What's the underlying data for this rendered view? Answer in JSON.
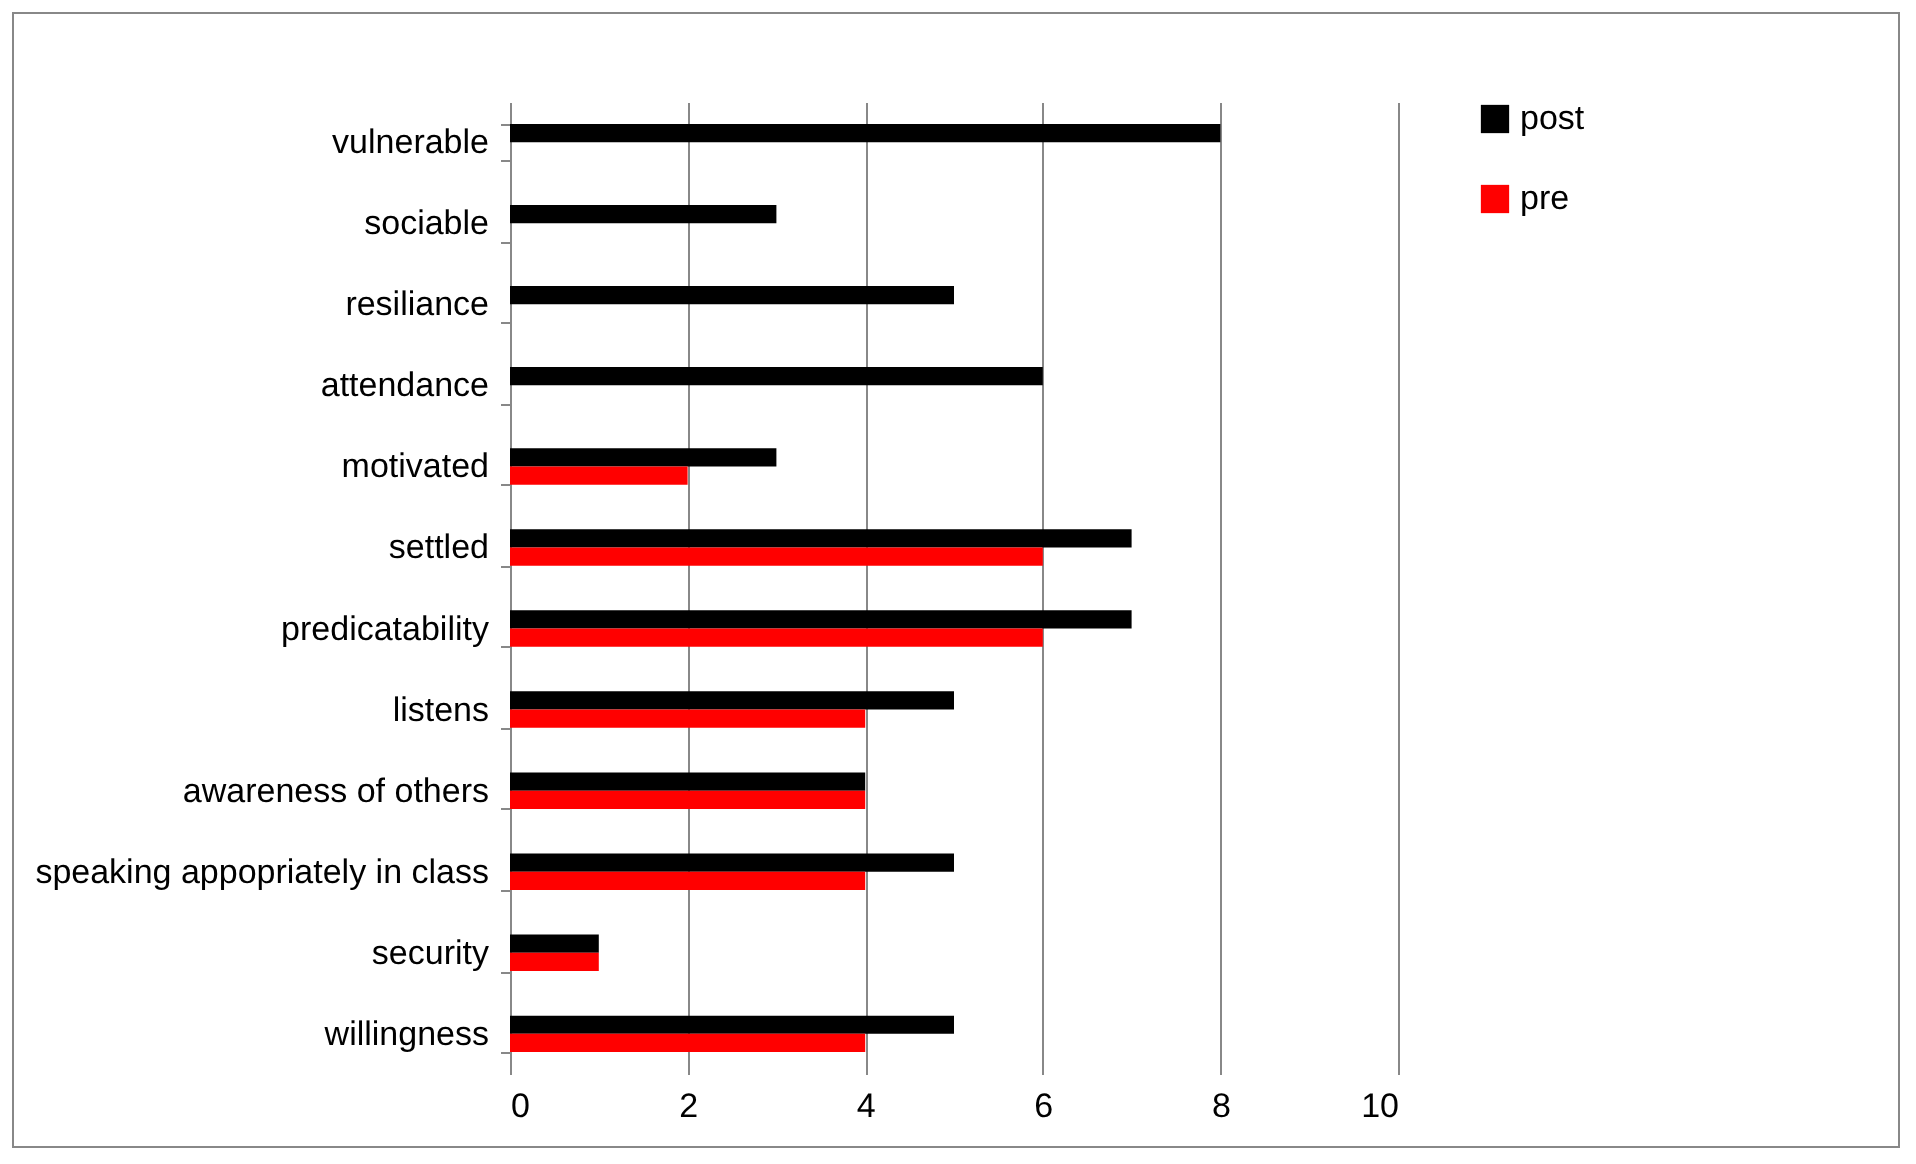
{
  "chart_data": {
    "type": "bar",
    "orientation": "horizontal",
    "categories": [
      "vulnerable",
      "sociable",
      "resiliance",
      "attendance",
      "motivated",
      "settled",
      "predicatability",
      "listens",
      "awareness of others",
      "speaking appopriately in class",
      "security",
      "willingness"
    ],
    "series": [
      {
        "name": "post",
        "color": "#000000",
        "values": [
          8,
          3,
          5,
          6,
          3,
          7,
          7,
          5,
          4,
          5,
          1,
          5
        ]
      },
      {
        "name": "pre",
        "color": "#ff0000",
        "values": [
          null,
          null,
          null,
          null,
          2,
          6,
          6,
          4,
          4,
          4,
          1,
          4
        ]
      }
    ],
    "xlim": [
      0,
      10
    ],
    "xticks": [
      0,
      2,
      4,
      6,
      8,
      10
    ],
    "grid": "x",
    "legend": "right"
  }
}
